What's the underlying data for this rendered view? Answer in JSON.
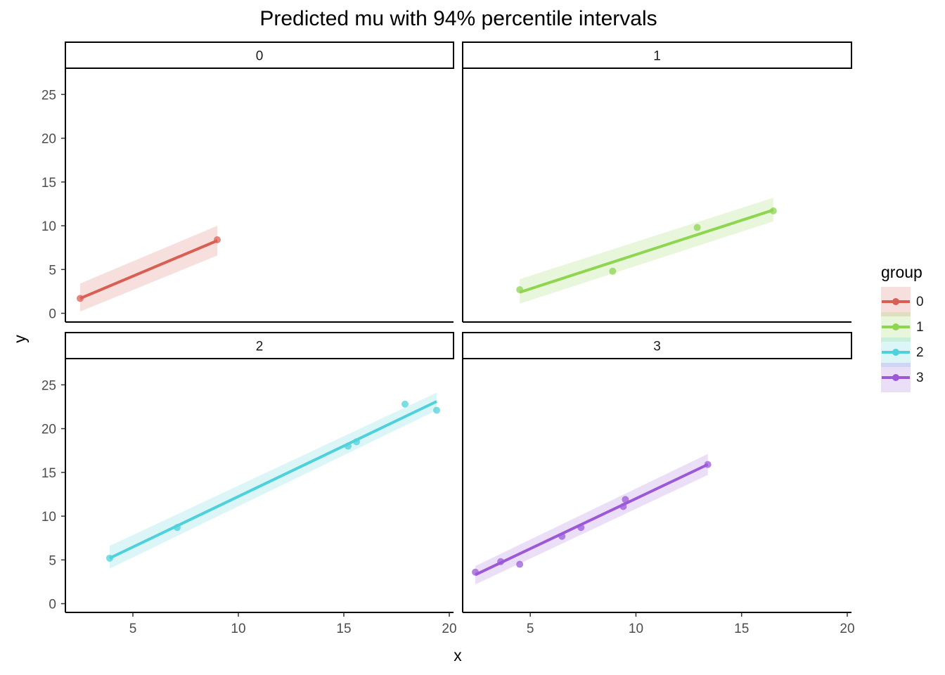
{
  "chart_data": {
    "type": "line",
    "title": "Predicted mu with 94% percentile intervals",
    "xlabel": "x",
    "ylabel": "y",
    "xlim": [
      1.8,
      20.2
    ],
    "ylim": [
      -1,
      28
    ],
    "x_ticks": [
      5,
      10,
      15,
      20
    ],
    "y_ticks": [
      0,
      5,
      10,
      15,
      20,
      25
    ],
    "grid": false,
    "legend": {
      "title": "group",
      "placement": "right",
      "entries": [
        "0",
        "1",
        "2",
        "3"
      ]
    },
    "facets": [
      {
        "label": "0",
        "color": "#d95f55",
        "points": [
          [
            2.5,
            1.7
          ],
          [
            9.0,
            8.4
          ]
        ],
        "fit": {
          "x": [
            2.5,
            9.0
          ],
          "y": [
            1.7,
            8.3
          ]
        },
        "interval": {
          "x": [
            2.5,
            9.0
          ],
          "lower": [
            0.2,
            6.6
          ],
          "upper": [
            3.4,
            10.0
          ]
        }
      },
      {
        "label": "1",
        "color": "#8ed64f",
        "points": [
          [
            4.5,
            2.7
          ],
          [
            8.9,
            4.8
          ],
          [
            12.9,
            9.8
          ],
          [
            16.5,
            11.7
          ]
        ],
        "fit": {
          "x": [
            4.5,
            16.5
          ],
          "y": [
            2.4,
            11.8
          ]
        },
        "interval": {
          "x": [
            4.5,
            16.5
          ],
          "lower": [
            1.1,
            10.5
          ],
          "upper": [
            3.9,
            13.2
          ]
        }
      },
      {
        "label": "2",
        "color": "#4fd1db",
        "points": [
          [
            3.9,
            5.2
          ],
          [
            7.1,
            8.7
          ],
          [
            15.2,
            18.0
          ],
          [
            15.6,
            18.5
          ],
          [
            17.9,
            22.8
          ],
          [
            19.4,
            22.1
          ]
        ],
        "fit": {
          "x": [
            3.9,
            19.4
          ],
          "y": [
            5.2,
            23.1
          ]
        },
        "interval": {
          "x": [
            3.9,
            19.4
          ],
          "lower": [
            4.0,
            22.1
          ],
          "upper": [
            6.6,
            24.1
          ]
        }
      },
      {
        "label": "3",
        "color": "#9b59d8",
        "points": [
          [
            2.4,
            3.6
          ],
          [
            3.6,
            4.8
          ],
          [
            4.5,
            4.5
          ],
          [
            6.5,
            7.7
          ],
          [
            7.4,
            8.7
          ],
          [
            9.4,
            11.1
          ],
          [
            9.5,
            11.9
          ],
          [
            13.4,
            15.9
          ]
        ],
        "fit": {
          "x": [
            2.4,
            13.4
          ],
          "y": [
            3.3,
            15.9
          ]
        },
        "interval": {
          "x": [
            2.4,
            13.4
          ],
          "lower": [
            2.2,
            14.7
          ],
          "upper": [
            4.3,
            17.1
          ]
        }
      }
    ]
  }
}
